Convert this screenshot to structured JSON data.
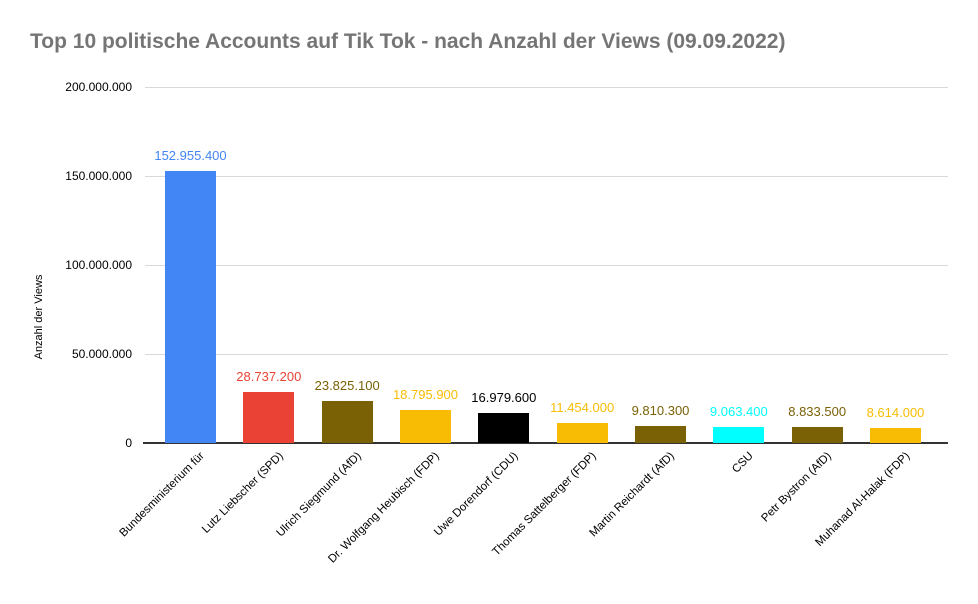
{
  "title": "Top 10 politische Accounts auf Tik Tok - nach Anzahl der Views (09.09.2022)",
  "chart_data": {
    "type": "bar",
    "title": "Top 10 politische Accounts auf Tik Tok - nach Anzahl der Views (09.09.2022)",
    "xlabel": "",
    "ylabel": "Anzahl der Views",
    "ylim": [
      0,
      200000000
    ],
    "grid": true,
    "legend_position": "none",
    "yticks": [
      {
        "value": 0,
        "label": "0"
      },
      {
        "value": 50000000,
        "label": "50.000.000"
      },
      {
        "value": 100000000,
        "label": "100.000.000"
      },
      {
        "value": 150000000,
        "label": "150.000.000"
      },
      {
        "value": 200000000,
        "label": "200.000.000"
      }
    ],
    "categories": [
      "Bundesministerium für",
      "Lutz Liebscher (SPD)",
      "Ulrich Siegmund (AfD)",
      "Dr. Wolfgang Heubisch (FDP)",
      "Uwe Dorendorf (CDU)",
      "Thomas Sattelberger (FDP)",
      "Martin Reichardt (AfD)",
      "CSU",
      "Petr Bystron (AfD)",
      "Muhanad Al-Halak (FDP)"
    ],
    "values": [
      152955400,
      28737200,
      23825100,
      18795900,
      16979600,
      11454000,
      9810300,
      9063400,
      8833500,
      8614000
    ],
    "value_labels": [
      "152.955.400",
      "28.737.200",
      "23.825.100",
      "18.795.900",
      "16.979.600",
      "11.454.000",
      "9.810.300",
      "9.063.400",
      "8.833.500",
      "8.614.000"
    ],
    "bar_colors": [
      "#4285f4",
      "#ea4335",
      "#7a6106",
      "#f9bc05",
      "#000000",
      "#f9bc05",
      "#7a6106",
      "#00ffff",
      "#7a6106",
      "#f9bc05"
    ],
    "title_color": "#757575",
    "gridline_color": "#d9d9d9",
    "baseline_color": "#333333"
  }
}
